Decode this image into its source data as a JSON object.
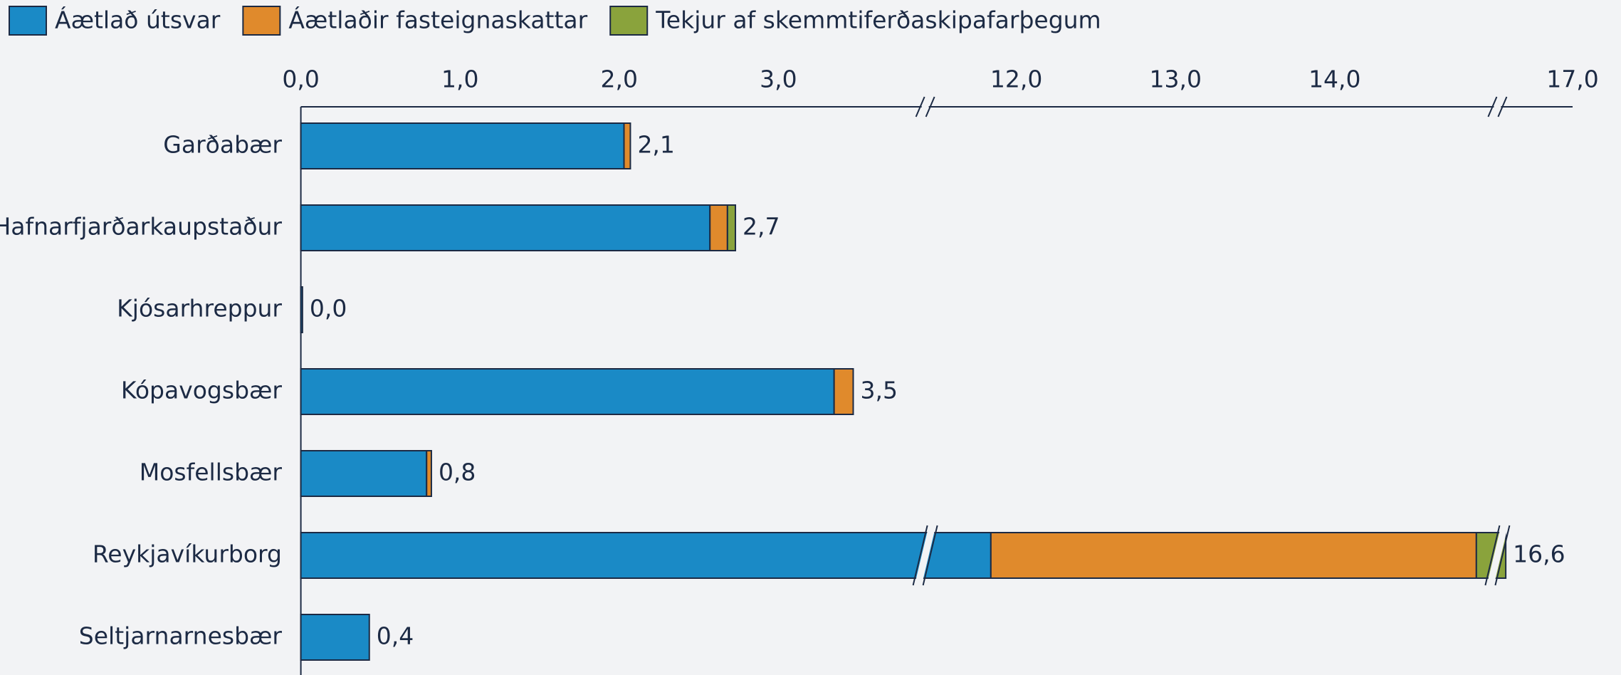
{
  "chart_data": {
    "type": "stacked_barh",
    "categories": [
      "Garðabær",
      "Hafnarfjarðarkaupstaður",
      "Kjósarhreppur",
      "Kópavogsbær",
      "Mosfellsbær",
      "Reykjavíkurborg",
      "Seltjarnarnesbær"
    ],
    "series": [
      {
        "name": "Áætlað útsvar",
        "color": "#1a8ac6",
        "values": [
          2.03,
          2.57,
          0.01,
          3.35,
          0.79,
          11.84,
          0.43
        ]
      },
      {
        "name": "Áætlaðir fasteignaskattar",
        "color": "#e08a2c",
        "values": [
          0.04,
          0.11,
          0,
          0.12,
          0.03,
          3.05,
          0
        ]
      },
      {
        "name": "Tekjur af skemmtiferðaskipafarþegum",
        "color": "#8aa33c",
        "values": [
          0,
          0.05,
          0,
          0,
          0,
          1.69,
          0
        ]
      }
    ],
    "totals": [
      2.07,
      2.73,
      0.01,
      3.47,
      0.82,
      16.58,
      0.43
    ],
    "total_labels": [
      "2,1",
      "2,7",
      "0,0",
      "3,5",
      "0,8",
      "16,6",
      "0,4"
    ],
    "xlim": [
      0,
      17
    ],
    "axis_breaks": [
      [
        3.9,
        11.45
      ],
      [
        15.0,
        16.55
      ]
    ],
    "xticks": [
      {
        "value": 0,
        "label": "0,0"
      },
      {
        "value": 1,
        "label": "1,0"
      },
      {
        "value": 2,
        "label": "2,0"
      },
      {
        "value": 3,
        "label": "3,0"
      },
      {
        "value": 12,
        "label": "12,0"
      },
      {
        "value": 13,
        "label": "13,0"
      },
      {
        "value": 14,
        "label": "14,0"
      },
      {
        "value": 17,
        "label": "17,0"
      }
    ],
    "legend": "top-left"
  }
}
